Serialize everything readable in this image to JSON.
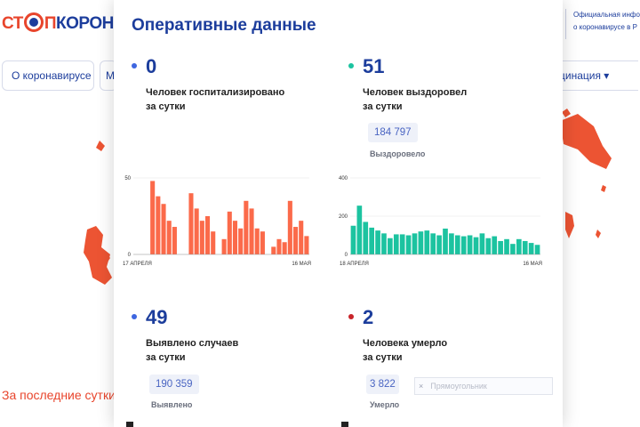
{
  "site": {
    "logo_part_1": "СТ",
    "logo_part_2": "П",
    "logo_part_3": "КОРОНАВИ",
    "info_line_1": "Официальная инфо",
    "info_line_2": "о коронавирусе в Р"
  },
  "nav": {
    "item_1": "О коронавирусе ▾",
    "item_2": "М",
    "item_3": "цинация ▾"
  },
  "background_link": "За последние сутки",
  "modal": {
    "title": "Оперативные данные",
    "hospitalized": {
      "value": "0",
      "label_1": "Человек госпитализировано",
      "label_2": "за сутки",
      "dot_color": "#3e66e0"
    },
    "recovered": {
      "value": "51",
      "label_1": "Человек выздоровел",
      "label_2": "за сутки",
      "total": "184 797",
      "total_label": "Выздоровело",
      "dot_color": "#1cc3a0"
    },
    "detected": {
      "value": "49",
      "label_1": "Выявлено случаев",
      "label_2": "за сутки",
      "total": "190 359",
      "total_label": "Выявлено",
      "dot_color": "#3e66e0"
    },
    "died": {
      "value": "2",
      "label_1": "Человека умерло",
      "label_2": "за сутки",
      "total": "3 822",
      "total_label": "Умерло",
      "dot_color": "#c8242a"
    },
    "shape_input": {
      "clear": "×",
      "placeholder": "Прямоугольник"
    }
  },
  "chart_data": [
    {
      "type": "bar",
      "color": "#fb6a4a",
      "x_start_label": "17 АПРЕЛЯ",
      "x_end_label": "16 МАЯ",
      "y_ticks": [
        0,
        50
      ],
      "ylim": [
        0,
        50
      ],
      "values": [
        0,
        0,
        0,
        48,
        38,
        33,
        22,
        18,
        0,
        0,
        40,
        30,
        22,
        25,
        15,
        0,
        10,
        28,
        22,
        17,
        35,
        30,
        17,
        15,
        0,
        5,
        10,
        8,
        35,
        18,
        22,
        12
      ]
    },
    {
      "type": "bar",
      "color": "#1cc3a0",
      "x_start_label": "18 АПРЕЛЯ",
      "x_end_label": "16 МАЯ",
      "y_ticks": [
        0,
        200,
        400
      ],
      "ylim": [
        0,
        400
      ],
      "values": [
        150,
        255,
        170,
        140,
        125,
        110,
        85,
        105,
        105,
        100,
        110,
        120,
        125,
        110,
        100,
        135,
        110,
        100,
        95,
        100,
        90,
        110,
        85,
        95,
        70,
        80,
        55,
        80,
        70,
        60,
        50
      ]
    }
  ]
}
